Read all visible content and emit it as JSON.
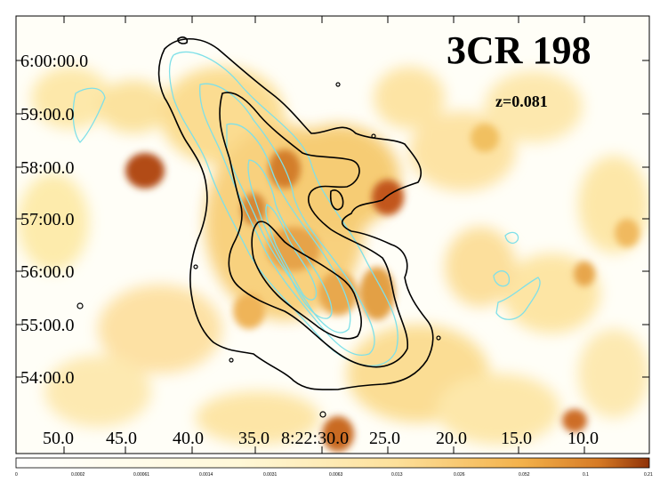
{
  "figure": {
    "title": "3CR 198",
    "redshift": "z=0.081",
    "dec_ticks": [
      "6:00:00.0",
      "59:00.0",
      "58:00.0",
      "57:00.0",
      "56:00.0",
      "55:00.0",
      "54:00.0"
    ],
    "ra_ticks": [
      "50.0",
      "45.0",
      "40.0",
      "35.0",
      "8:22:30.0",
      "25.0",
      "20.0",
      "15.0",
      "10.0"
    ],
    "colorbar_ticks": [
      "0",
      "0.0002",
      "0.00061",
      "0.0014",
      "0.0031",
      "0.0063",
      "0.013",
      "0.026",
      "0.052",
      "0.1",
      "0.21"
    ],
    "colors": {
      "contour_radio": "#000000",
      "contour_optical": "#7fe0e8",
      "map_low": "#fff3c6",
      "map_mid": "#f2b548",
      "map_high": "#a8400f"
    }
  }
}
